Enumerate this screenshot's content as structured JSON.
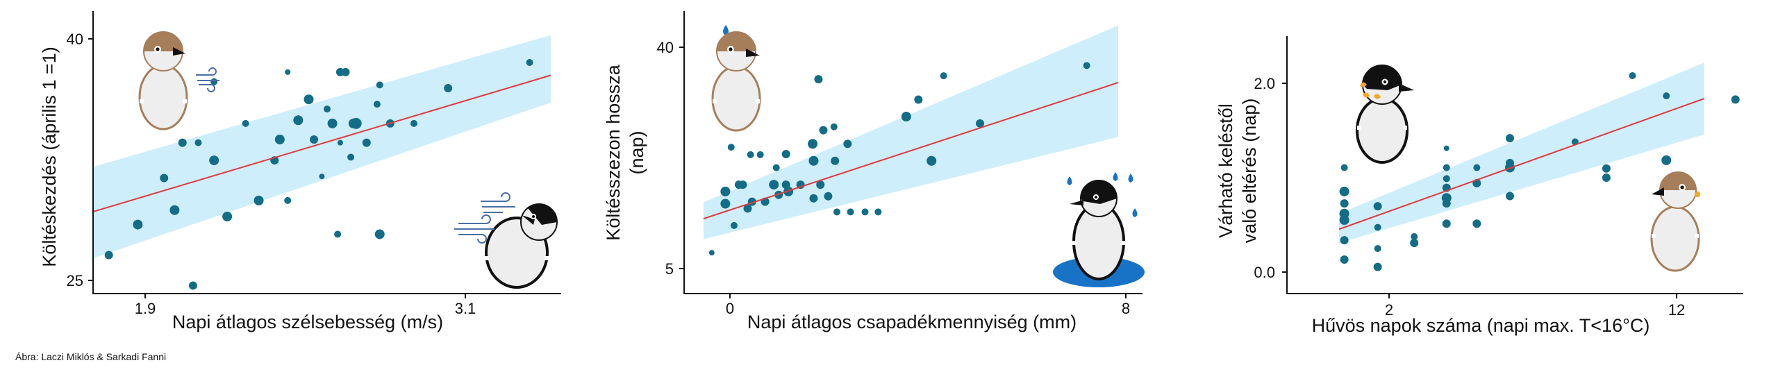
{
  "credit": "Ábra: Laczi Miklós & Sarkadi Fanni",
  "colors": {
    "band": "#cdeefa",
    "line": "#e0393e",
    "point": "#136d87",
    "bird_brown": "#a77e5a",
    "bird_body": "#eeeeee",
    "rain": "#1873c6",
    "wind": "#4a6fa5"
  },
  "chart_data": [
    {
      "type": "scatter",
      "title": "",
      "xlabel": "Napi átlagos szélsebesség (m/s)",
      "ylabel": "Költéskezdés (április 1 =1)",
      "x_ticks": [
        "1.9",
        "3.1"
      ],
      "y_ticks": [
        "25",
        "40"
      ],
      "xlim": [
        1.78,
        3.56
      ],
      "ylim": [
        24.4,
        42.0
      ],
      "grid": false,
      "fit": {
        "x": [
          1.78,
          3.52
        ],
        "y": [
          29.5,
          38.0
        ],
        "band_low": [
          26.6,
          36.3
        ],
        "band_high": [
          32.3,
          40.5
        ]
      },
      "icons": [
        "sparrow-wind-icon",
        "tit-wind-icon"
      ],
      "points": [
        {
          "x": 1.84,
          "y": 26.8,
          "s": 6
        },
        {
          "x": 1.95,
          "y": 28.7,
          "s": 7
        },
        {
          "x": 2.05,
          "y": 31.6,
          "s": 6
        },
        {
          "x": 2.09,
          "y": 29.6,
          "s": 7
        },
        {
          "x": 2.12,
          "y": 33.8,
          "s": 6
        },
        {
          "x": 2.16,
          "y": 24.9,
          "s": 6
        },
        {
          "x": 2.18,
          "y": 33.8,
          "s": 5
        },
        {
          "x": 2.24,
          "y": 32.7,
          "s": 7
        },
        {
          "x": 2.24,
          "y": 37.6,
          "s": 5
        },
        {
          "x": 2.29,
          "y": 29.2,
          "s": 7
        },
        {
          "x": 2.36,
          "y": 35.0,
          "s": 5
        },
        {
          "x": 2.41,
          "y": 30.2,
          "s": 7
        },
        {
          "x": 2.47,
          "y": 32.7,
          "s": 6
        },
        {
          "x": 2.49,
          "y": 34.0,
          "s": 7
        },
        {
          "x": 2.52,
          "y": 38.2,
          "s": 4
        },
        {
          "x": 2.52,
          "y": 30.2,
          "s": 5
        },
        {
          "x": 2.56,
          "y": 35.2,
          "s": 7
        },
        {
          "x": 2.6,
          "y": 36.5,
          "s": 7
        },
        {
          "x": 2.62,
          "y": 34.0,
          "s": 6
        },
        {
          "x": 2.65,
          "y": 31.7,
          "s": 4
        },
        {
          "x": 2.67,
          "y": 35.9,
          "s": 5
        },
        {
          "x": 2.69,
          "y": 35.0,
          "s": 7
        },
        {
          "x": 2.71,
          "y": 28.1,
          "s": 5
        },
        {
          "x": 2.72,
          "y": 33.8,
          "s": 4
        },
        {
          "x": 2.72,
          "y": 38.2,
          "s": 6
        },
        {
          "x": 2.74,
          "y": 38.2,
          "s": 6
        },
        {
          "x": 2.76,
          "y": 32.9,
          "s": 5
        },
        {
          "x": 2.77,
          "y": 35.0,
          "s": 7
        },
        {
          "x": 2.78,
          "y": 35.0,
          "s": 8
        },
        {
          "x": 2.82,
          "y": 33.8,
          "s": 6
        },
        {
          "x": 2.86,
          "y": 36.2,
          "s": 5
        },
        {
          "x": 2.87,
          "y": 28.1,
          "s": 7
        },
        {
          "x": 2.87,
          "y": 37.4,
          "s": 5
        },
        {
          "x": 2.91,
          "y": 35.0,
          "s": 6
        },
        {
          "x": 3.0,
          "y": 35.0,
          "s": 5
        },
        {
          "x": 3.13,
          "y": 37.2,
          "s": 6
        },
        {
          "x": 3.44,
          "y": 38.8,
          "s": 5
        }
      ]
    },
    {
      "type": "scatter",
      "title": "",
      "xlabel": "Napi átlagos csapadékmennyiség (mm)",
      "ylabel": "Költésszezon hossza (nap)",
      "x_ticks": [
        "0",
        "8"
      ],
      "y_ticks": [
        "5",
        "40"
      ],
      "xlim": [
        -0.85,
        8.6
      ],
      "ylim": [
        1.0,
        42.5
      ],
      "grid": false,
      "fit": {
        "x": [
          -0.45,
          8.1
        ],
        "y": [
          12.0,
          32.0
        ],
        "band_low": [
          9.0,
          24.0
        ],
        "band_high": [
          14.4,
          40.4
        ]
      },
      "icons": [
        "sparrow-rain-icon",
        "tit-rain-icon"
      ],
      "points": [
        {
          "x": -0.28,
          "y": 7.0,
          "s": 4
        },
        {
          "x": 0.0,
          "y": 14.2,
          "s": 7
        },
        {
          "x": 0.0,
          "y": 16.0,
          "s": 7
        },
        {
          "x": 0.12,
          "y": 22.5,
          "s": 5
        },
        {
          "x": 0.18,
          "y": 11.0,
          "s": 5
        },
        {
          "x": 0.28,
          "y": 17.0,
          "s": 6
        },
        {
          "x": 0.36,
          "y": 17.0,
          "s": 6
        },
        {
          "x": 0.42,
          "y": 26.5,
          "s": 6
        },
        {
          "x": 0.46,
          "y": 13.5,
          "s": 6
        },
        {
          "x": 0.52,
          "y": 21.4,
          "s": 5
        },
        {
          "x": 0.55,
          "y": 14.5,
          "s": 6
        },
        {
          "x": 0.72,
          "y": 21.4,
          "s": 5
        },
        {
          "x": 0.82,
          "y": 14.5,
          "s": 6
        },
        {
          "x": 1.0,
          "y": 17.0,
          "s": 7
        },
        {
          "x": 1.05,
          "y": 19.5,
          "s": 5
        },
        {
          "x": 1.1,
          "y": 15.5,
          "s": 6
        },
        {
          "x": 1.25,
          "y": 17.0,
          "s": 6
        },
        {
          "x": 1.25,
          "y": 21.5,
          "s": 6
        },
        {
          "x": 1.3,
          "y": 16.0,
          "s": 7
        },
        {
          "x": 1.55,
          "y": 17.0,
          "s": 6
        },
        {
          "x": 1.8,
          "y": 23.0,
          "s": 7
        },
        {
          "x": 1.82,
          "y": 20.5,
          "s": 7
        },
        {
          "x": 1.82,
          "y": 15.0,
          "s": 6
        },
        {
          "x": 1.92,
          "y": 32.5,
          "s": 6
        },
        {
          "x": 1.96,
          "y": 17.0,
          "s": 6
        },
        {
          "x": 2.02,
          "y": 25.0,
          "s": 6
        },
        {
          "x": 2.12,
          "y": 15.3,
          "s": 6
        },
        {
          "x": 2.24,
          "y": 25.5,
          "s": 5
        },
        {
          "x": 2.26,
          "y": 20.5,
          "s": 6
        },
        {
          "x": 2.3,
          "y": 13.0,
          "s": 5
        },
        {
          "x": 2.52,
          "y": 23.0,
          "s": 6
        },
        {
          "x": 2.58,
          "y": 13.0,
          "s": 5
        },
        {
          "x": 2.88,
          "y": 13.0,
          "s": 5
        },
        {
          "x": 3.15,
          "y": 13.0,
          "s": 5
        },
        {
          "x": 3.73,
          "y": 27.0,
          "s": 7
        },
        {
          "x": 3.98,
          "y": 29.5,
          "s": 6
        },
        {
          "x": 4.25,
          "y": 20.5,
          "s": 7
        },
        {
          "x": 4.5,
          "y": 33.0,
          "s": 5
        },
        {
          "x": 5.25,
          "y": 26.0,
          "s": 6
        },
        {
          "x": 7.45,
          "y": 34.5,
          "s": 5
        }
      ]
    },
    {
      "type": "scatter",
      "title": "",
      "xlabel": "Hűvös napok száma (napi max. T<16°C)",
      "ylabel": "Várható keléstől való eltérés (nap)",
      "x_ticks": [
        "2",
        "12"
      ],
      "y_ticks": [
        "0.0",
        "2.0"
      ],
      "xlim": [
        -2.2,
        15.3
      ],
      "ylim": [
        -0.25,
        2.55
      ],
      "grid": false,
      "fit": {
        "x": [
          -0.2,
          13.8
        ],
        "y": [
          0.45,
          1.87
        ],
        "band_low": [
          0.3,
          1.48
        ],
        "band_high": [
          0.62,
          2.26
        ]
      },
      "icons": [
        "tit-cold-icon",
        "sparrow-cold-icon"
      ],
      "points": [
        {
          "x": 0.0,
          "y": 1.12,
          "s": 5
        },
        {
          "x": 0.0,
          "y": 0.86,
          "s": 7
        },
        {
          "x": 0.0,
          "y": 0.73,
          "s": 6
        },
        {
          "x": 0.0,
          "y": 0.62,
          "s": 7
        },
        {
          "x": 0.0,
          "y": 0.55,
          "s": 7
        },
        {
          "x": 0.0,
          "y": 0.33,
          "s": 6
        },
        {
          "x": 0.0,
          "y": 0.12,
          "s": 6
        },
        {
          "x": 1.28,
          "y": 0.7,
          "s": 6
        },
        {
          "x": 1.28,
          "y": 0.47,
          "s": 5
        },
        {
          "x": 1.28,
          "y": 0.24,
          "s": 5
        },
        {
          "x": 1.28,
          "y": 0.04,
          "s": 6
        },
        {
          "x": 2.68,
          "y": 0.37,
          "s": 5
        },
        {
          "x": 2.68,
          "y": 0.3,
          "s": 6
        },
        {
          "x": 3.92,
          "y": 1.33,
          "s": 4
        },
        {
          "x": 3.92,
          "y": 1.12,
          "s": 5
        },
        {
          "x": 3.92,
          "y": 1.0,
          "s": 5
        },
        {
          "x": 3.92,
          "y": 0.9,
          "s": 6
        },
        {
          "x": 3.92,
          "y": 0.79,
          "s": 7
        },
        {
          "x": 3.92,
          "y": 0.73,
          "s": 6
        },
        {
          "x": 3.92,
          "y": 0.51,
          "s": 6
        },
        {
          "x": 5.08,
          "y": 1.12,
          "s": 5
        },
        {
          "x": 5.08,
          "y": 0.95,
          "s": 6
        },
        {
          "x": 5.08,
          "y": 0.51,
          "s": 6
        },
        {
          "x": 6.35,
          "y": 1.44,
          "s": 6
        },
        {
          "x": 6.35,
          "y": 1.17,
          "s": 6
        },
        {
          "x": 6.35,
          "y": 1.12,
          "s": 7
        },
        {
          "x": 6.35,
          "y": 0.81,
          "s": 6
        },
        {
          "x": 8.85,
          "y": 1.4,
          "s": 5
        },
        {
          "x": 10.05,
          "y": 1.11,
          "s": 6
        },
        {
          "x": 10.05,
          "y": 1.01,
          "s": 6
        },
        {
          "x": 11.05,
          "y": 2.12,
          "s": 5
        },
        {
          "x": 12.35,
          "y": 1.9,
          "s": 5
        },
        {
          "x": 12.35,
          "y": 1.2,
          "s": 7
        },
        {
          "x": 15.0,
          "y": 1.86,
          "s": 6
        }
      ]
    }
  ]
}
